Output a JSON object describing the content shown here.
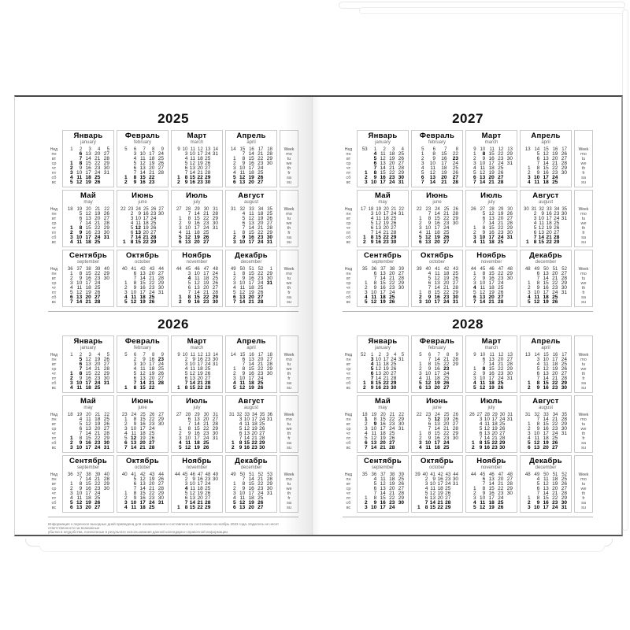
{
  "labels": {
    "week_ru": "Нед",
    "week_en": "Week",
    "days_ru": [
      "пн",
      "вт",
      "ср",
      "чт",
      "пт",
      "сб",
      "вс"
    ],
    "days_en": [
      "mo",
      "tu",
      "we",
      "th",
      "fr",
      "sa",
      "su"
    ]
  },
  "footnote": {
    "line1": "Информация о переносе выходных дней приведена для ознакомления и составлена по состоянию на ноябрь 2023 года. Издатель не несет ответственности за возможные",
    "line2": "убытки и неудобства, понесенные в результате использования данной календарно-справочной информации."
  },
  "pages": {
    "left": {
      "years": [
        {
          "year": "2025",
          "months": [
            {
              "ru": "Январь",
              "en": "january",
              "weeks": [
                1,
                2,
                3,
                4,
                5
              ],
              "start": 2,
              "days": 31,
              "bold": [
                1,
                2,
                3,
                6,
                7,
                8
              ]
            },
            {
              "ru": "Февраль",
              "en": "february",
              "weeks": [
                5,
                6,
                7,
                8,
                9
              ],
              "start": 5,
              "days": 28,
              "bold": []
            },
            {
              "ru": "Март",
              "en": "march",
              "weeks": [
                9,
                10,
                11,
                12,
                13,
                14
              ],
              "start": 5,
              "days": 31,
              "bold": []
            },
            {
              "ru": "Апрель",
              "en": "april",
              "weeks": [
                14,
                15,
                16,
                17,
                18
              ],
              "start": 1,
              "days": 30,
              "bold": []
            },
            {
              "ru": "Май",
              "en": "may",
              "weeks": [
                18,
                19,
                20,
                21,
                22
              ],
              "start": 3,
              "days": 31,
              "bold": [
                1,
                2,
                8,
                9
              ]
            },
            {
              "ru": "Июнь",
              "en": "june",
              "weeks": [
                22,
                23,
                24,
                25,
                26,
                27
              ],
              "start": 6,
              "days": 30,
              "bold": [
                12,
                13
              ]
            },
            {
              "ru": "Июль",
              "en": "july",
              "weeks": [
                27,
                28,
                29,
                30,
                31
              ],
              "start": 1,
              "days": 31,
              "bold": []
            },
            {
              "ru": "Август",
              "en": "august",
              "weeks": [
                31,
                32,
                33,
                34,
                35
              ],
              "start": 4,
              "days": 31,
              "bold": []
            },
            {
              "ru": "Сентябрь",
              "en": "september",
              "weeks": [
                36,
                37,
                38,
                39,
                40
              ],
              "start": 0,
              "days": 30,
              "bold": []
            },
            {
              "ru": "Октябрь",
              "en": "october",
              "weeks": [
                40,
                41,
                42,
                43,
                44
              ],
              "start": 2,
              "days": 31,
              "bold": []
            },
            {
              "ru": "Ноябрь",
              "en": "november",
              "weeks": [
                44,
                45,
                46,
                47,
                48
              ],
              "start": 5,
              "days": 30,
              "bold": [
                4
              ]
            },
            {
              "ru": "Декабрь",
              "en": "december",
              "weeks": [
                49,
                50,
                51,
                52,
                1
              ],
              "start": 0,
              "days": 31,
              "bold": [
                31
              ]
            }
          ]
        },
        {
          "year": "2026",
          "months": [
            {
              "ru": "Январь",
              "en": "january",
              "weeks": [
                1,
                2,
                3,
                4,
                5
              ],
              "start": 3,
              "days": 31,
              "bold": [
                1,
                2,
                5,
                6,
                7,
                8
              ]
            },
            {
              "ru": "Февраль",
              "en": "february",
              "weeks": [
                5,
                6,
                7,
                8,
                9
              ],
              "start": 6,
              "days": 28,
              "bold": [
                23
              ]
            },
            {
              "ru": "Март",
              "en": "march",
              "weeks": [
                9,
                10,
                11,
                12,
                13,
                14
              ],
              "start": 6,
              "days": 31,
              "bold": []
            },
            {
              "ru": "Апрель",
              "en": "april",
              "weeks": [
                14,
                15,
                16,
                17,
                18
              ],
              "start": 2,
              "days": 30,
              "bold": []
            },
            {
              "ru": "Май",
              "en": "may",
              "weeks": [
                18,
                19,
                20,
                21,
                22
              ],
              "start": 4,
              "days": 31,
              "bold": [
                1
              ]
            },
            {
              "ru": "Июнь",
              "en": "june",
              "weeks": [
                23,
                24,
                25,
                26,
                27
              ],
              "start": 0,
              "days": 30,
              "bold": [
                12
              ]
            },
            {
              "ru": "Июль",
              "en": "july",
              "weeks": [
                27,
                28,
                29,
                30,
                31
              ],
              "start": 2,
              "days": 31,
              "bold": []
            },
            {
              "ru": "Август",
              "en": "august",
              "weeks": [
                31,
                32,
                33,
                34,
                35,
                36
              ],
              "start": 5,
              "days": 31,
              "bold": []
            },
            {
              "ru": "Сентябрь",
              "en": "september",
              "weeks": [
                36,
                37,
                38,
                39,
                40
              ],
              "start": 1,
              "days": 30,
              "bold": []
            },
            {
              "ru": "Октябрь",
              "en": "october",
              "weeks": [
                40,
                41,
                42,
                43,
                44
              ],
              "start": 3,
              "days": 31,
              "bold": []
            },
            {
              "ru": "Ноябрь",
              "en": "november",
              "weeks": [
                44,
                45,
                46,
                47,
                48,
                49
              ],
              "start": 6,
              "days": 30,
              "bold": [
                4
              ]
            },
            {
              "ru": "Декабрь",
              "en": "december",
              "weeks": [
                49,
                50,
                51,
                52,
                53
              ],
              "start": 1,
              "days": 31,
              "bold": []
            }
          ]
        }
      ]
    },
    "right": {
      "years": [
        {
          "year": "2027",
          "months": [
            {
              "ru": "Январь",
              "en": "january",
              "weeks": [
                53,
                1,
                2,
                3,
                4
              ],
              "start": 4,
              "days": 31,
              "bold": [
                1,
                4,
                5,
                6,
                7,
                8
              ]
            },
            {
              "ru": "Февраль",
              "en": "february",
              "weeks": [
                5,
                6,
                7,
                8
              ],
              "start": 0,
              "days": 28,
              "bold": [
                23
              ]
            },
            {
              "ru": "Март",
              "en": "march",
              "weeks": [
                9,
                10,
                11,
                12,
                13
              ],
              "start": 0,
              "days": 31,
              "bold": [
                8
              ]
            },
            {
              "ru": "Апрель",
              "en": "april",
              "weeks": [
                13,
                14,
                15,
                16,
                17
              ],
              "start": 3,
              "days": 30,
              "bold": []
            },
            {
              "ru": "Май",
              "en": "may",
              "weeks": [
                17,
                18,
                19,
                20,
                21,
                22
              ],
              "start": 5,
              "days": 31,
              "bold": []
            },
            {
              "ru": "Июнь",
              "en": "june",
              "weeks": [
                22,
                23,
                24,
                25,
                26
              ],
              "start": 1,
              "days": 30,
              "bold": []
            },
            {
              "ru": "Июль",
              "en": "july",
              "weeks": [
                26,
                27,
                28,
                29,
                30
              ],
              "start": 3,
              "days": 31,
              "bold": []
            },
            {
              "ru": "Август",
              "en": "august",
              "weeks": [
                30,
                31,
                32,
                33,
                34,
                35
              ],
              "start": 6,
              "days": 31,
              "bold": []
            },
            {
              "ru": "Сентябрь",
              "en": "september",
              "weeks": [
                35,
                36,
                37,
                38,
                39
              ],
              "start": 2,
              "days": 30,
              "bold": []
            },
            {
              "ru": "Октябрь",
              "en": "october",
              "weeks": [
                39,
                40,
                41,
                42,
                43
              ],
              "start": 4,
              "days": 31,
              "bold": []
            },
            {
              "ru": "Ноябрь",
              "en": "november",
              "weeks": [
                44,
                45,
                46,
                47,
                48
              ],
              "start": 0,
              "days": 30,
              "bold": [
                4
              ]
            },
            {
              "ru": "Декабрь",
              "en": "december",
              "weeks": [
                48,
                49,
                50,
                51,
                52
              ],
              "start": 2,
              "days": 31,
              "bold": []
            }
          ]
        },
        {
          "year": "2028",
          "months": [
            {
              "ru": "Январь",
              "en": "january",
              "weeks": [
                52,
                1,
                2,
                3,
                4,
                5
              ],
              "start": 5,
              "days": 31,
              "bold": [
                3,
                4,
                5,
                6,
                7
              ]
            },
            {
              "ru": "Февраль",
              "en": "february",
              "weeks": [
                5,
                6,
                7,
                8,
                9
              ],
              "start": 1,
              "days": 29,
              "bold": [
                23
              ]
            },
            {
              "ru": "Март",
              "en": "march",
              "weeks": [
                9,
                10,
                11,
                12,
                13
              ],
              "start": 2,
              "days": 31,
              "bold": [
                8
              ]
            },
            {
              "ru": "Апрель",
              "en": "april",
              "weeks": [
                13,
                14,
                15,
                16,
                17
              ],
              "start": 5,
              "days": 30,
              "bold": []
            },
            {
              "ru": "Май",
              "en": "may",
              "weeks": [
                18,
                19,
                20,
                21,
                22
              ],
              "start": 0,
              "days": 31,
              "bold": [
                1,
                9
              ]
            },
            {
              "ru": "Июнь",
              "en": "june",
              "weeks": [
                22,
                23,
                24,
                25,
                26
              ],
              "start": 3,
              "days": 30,
              "bold": [
                12
              ]
            },
            {
              "ru": "Июль",
              "en": "july",
              "weeks": [
                26,
                27,
                28,
                29,
                30,
                31
              ],
              "start": 5,
              "days": 31,
              "bold": []
            },
            {
              "ru": "Август",
              "en": "august",
              "weeks": [
                31,
                32,
                33,
                34,
                35
              ],
              "start": 1,
              "days": 31,
              "bold": []
            },
            {
              "ru": "Сентябрь",
              "en": "september",
              "weeks": [
                35,
                36,
                37,
                38,
                39
              ],
              "start": 4,
              "days": 30,
              "bold": []
            },
            {
              "ru": "Октябрь",
              "en": "october",
              "weeks": [
                39,
                40,
                41,
                42,
                43,
                44
              ],
              "start": 6,
              "days": 31,
              "bold": []
            },
            {
              "ru": "Ноябрь",
              "en": "november",
              "weeks": [
                44,
                45,
                46,
                47,
                48
              ],
              "start": 2,
              "days": 30,
              "bold": []
            },
            {
              "ru": "Декабрь",
              "en": "december",
              "weeks": [
                48,
                49,
                50,
                51,
                52
              ],
              "start": 4,
              "days": 31,
              "bold": []
            }
          ]
        }
      ]
    }
  }
}
